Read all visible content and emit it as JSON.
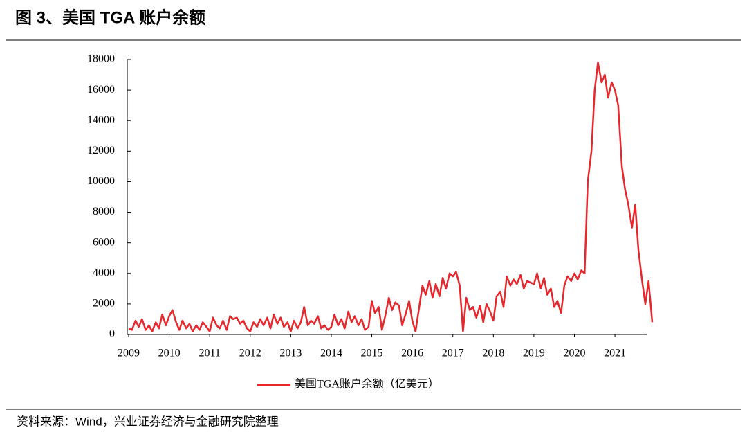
{
  "chart_data": {
    "type": "line",
    "title": "图 3、美国 TGA 账户余额",
    "source": "资料来源：Wind，兴业证券经济与金融研究院整理",
    "xlim": [
      2009,
      2021.92
    ],
    "xticks": [
      2009,
      2010,
      2011,
      2012,
      2013,
      2014,
      2015,
      2016,
      2017,
      2018,
      2019,
      2020,
      2021
    ],
    "ylim": [
      0,
      18000
    ],
    "yticks": [
      0,
      2000,
      4000,
      6000,
      8000,
      10000,
      12000,
      14000,
      16000,
      18000
    ],
    "x": [
      2009,
      2009.08,
      2009.17,
      2009.25,
      2009.33,
      2009.42,
      2009.5,
      2009.58,
      2009.67,
      2009.75,
      2009.83,
      2009.92,
      2010,
      2010.08,
      2010.17,
      2010.25,
      2010.33,
      2010.42,
      2010.5,
      2010.58,
      2010.67,
      2010.75,
      2010.83,
      2010.92,
      2011,
      2011.08,
      2011.17,
      2011.25,
      2011.33,
      2011.42,
      2011.5,
      2011.58,
      2011.67,
      2011.75,
      2011.83,
      2011.92,
      2012,
      2012.08,
      2012.17,
      2012.25,
      2012.33,
      2012.42,
      2012.5,
      2012.58,
      2012.67,
      2012.75,
      2012.83,
      2012.92,
      2013,
      2013.08,
      2013.17,
      2013.25,
      2013.33,
      2013.42,
      2013.5,
      2013.58,
      2013.67,
      2013.75,
      2013.83,
      2013.92,
      2014,
      2014.08,
      2014.17,
      2014.25,
      2014.33,
      2014.42,
      2014.5,
      2014.58,
      2014.67,
      2014.75,
      2014.83,
      2014.92,
      2015,
      2015.08,
      2015.17,
      2015.25,
      2015.33,
      2015.42,
      2015.5,
      2015.58,
      2015.67,
      2015.75,
      2015.83,
      2015.92,
      2016,
      2016.08,
      2016.17,
      2016.25,
      2016.33,
      2016.42,
      2016.5,
      2016.58,
      2016.67,
      2016.75,
      2016.83,
      2016.92,
      2017,
      2017.08,
      2017.17,
      2017.25,
      2017.33,
      2017.42,
      2017.5,
      2017.58,
      2017.67,
      2017.75,
      2017.83,
      2017.92,
      2018,
      2018.08,
      2018.17,
      2018.25,
      2018.33,
      2018.42,
      2018.5,
      2018.58,
      2018.67,
      2018.75,
      2018.83,
      2018.92,
      2019,
      2019.08,
      2019.17,
      2019.25,
      2019.33,
      2019.42,
      2019.5,
      2019.58,
      2019.67,
      2019.75,
      2019.83,
      2019.92,
      2020,
      2020.08,
      2020.17,
      2020.25,
      2020.33,
      2020.42,
      2020.5,
      2020.58,
      2020.67,
      2020.75,
      2020.83,
      2020.92,
      2021,
      2021.08,
      2021.17,
      2021.25,
      2021.33,
      2021.42,
      2021.5,
      2021.58,
      2021.67,
      2021.75,
      2021.83,
      2021.92
    ],
    "series": [
      {
        "name": "美国TGA账户余额（亿美元）",
        "color": "#e8262b",
        "values": [
          400,
          300,
          900,
          500,
          1000,
          300,
          600,
          200,
          800,
          400,
          1300,
          600,
          1200,
          1600,
          800,
          300,
          900,
          400,
          700,
          200,
          600,
          300,
          800,
          500,
          200,
          1100,
          600,
          400,
          900,
          300,
          1200,
          1000,
          1100,
          700,
          900,
          400,
          200,
          800,
          500,
          1000,
          600,
          1100,
          400,
          1300,
          700,
          1100,
          500,
          800,
          200,
          900,
          400,
          800,
          1800,
          600,
          900,
          700,
          1200,
          400,
          600,
          300,
          500,
          1300,
          600,
          1000,
          400,
          1500,
          800,
          1200,
          600,
          1000,
          300,
          500,
          2200,
          1400,
          1800,
          300,
          1200,
          2400,
          1600,
          2100,
          1900,
          600,
          1300,
          2200,
          900,
          200,
          1800,
          3200,
          2600,
          3500,
          2400,
          3300,
          2500,
          3700,
          3000,
          4000,
          3800,
          4100,
          3200,
          200,
          2400,
          1600,
          1800,
          1100,
          1900,
          800,
          2000,
          1500,
          900,
          2500,
          2800,
          1800,
          3800,
          3200,
          3600,
          3300,
          3900,
          3000,
          3500,
          3400,
          3300,
          4000,
          3000,
          3700,
          2600,
          3000,
          1800,
          2200,
          1400,
          3200,
          3800,
          3500,
          4000,
          3600,
          4200,
          4000,
          10000,
          12000,
          16000,
          17800,
          16500,
          17000,
          15500,
          16500,
          16000,
          15000,
          11000,
          9500,
          8500,
          7000,
          8500,
          5500,
          3500,
          2000,
          3500,
          800
        ]
      }
    ]
  }
}
